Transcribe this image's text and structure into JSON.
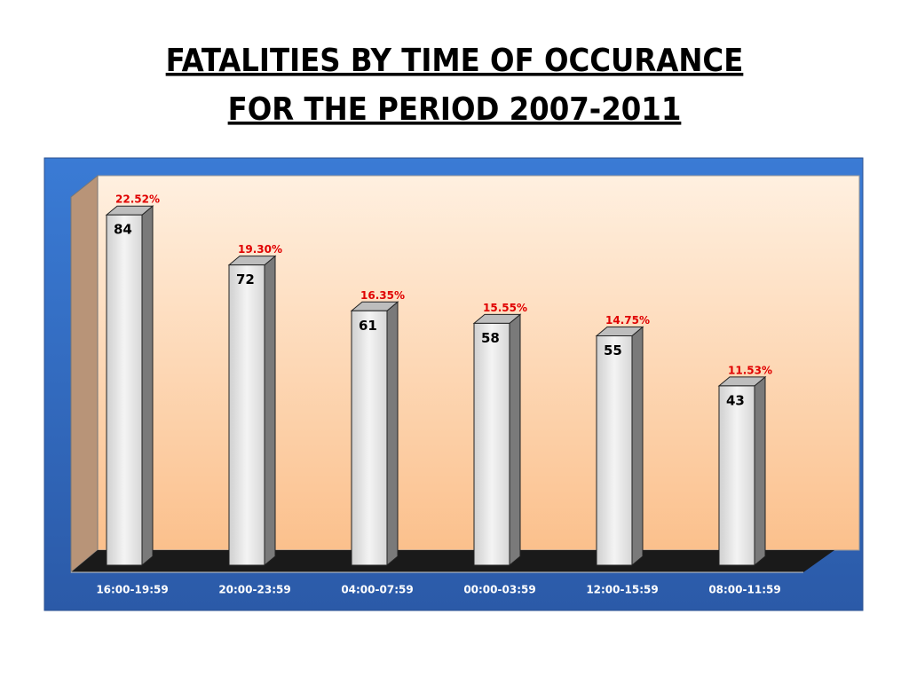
{
  "chart_data": {
    "type": "bar3d",
    "title": "FATALITIES BY TIME OF OCCURANCE",
    "subtitle": "FOR THE PERIOD 2007-2011",
    "categories": [
      "16:00-19:59",
      "20:00-23:59",
      "04:00-07:59",
      "00:00-03:59",
      "12:00-15:59",
      "08:00-11:59"
    ],
    "values": [
      84,
      72,
      61,
      58,
      55,
      43
    ],
    "percent_labels": [
      "22.52%",
      "19.30%",
      "16.35%",
      "15.55%",
      "14.75%",
      "11.53%"
    ],
    "color": "#e6e6e6"
  }
}
